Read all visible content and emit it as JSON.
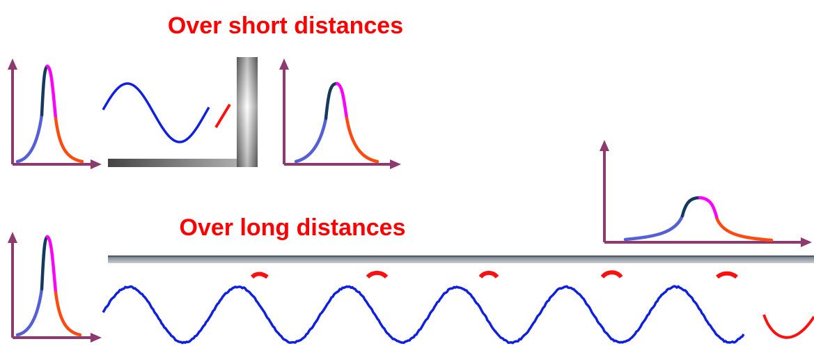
{
  "labels": {
    "short": "Over short distances",
    "long": "Over long distances"
  }
}
